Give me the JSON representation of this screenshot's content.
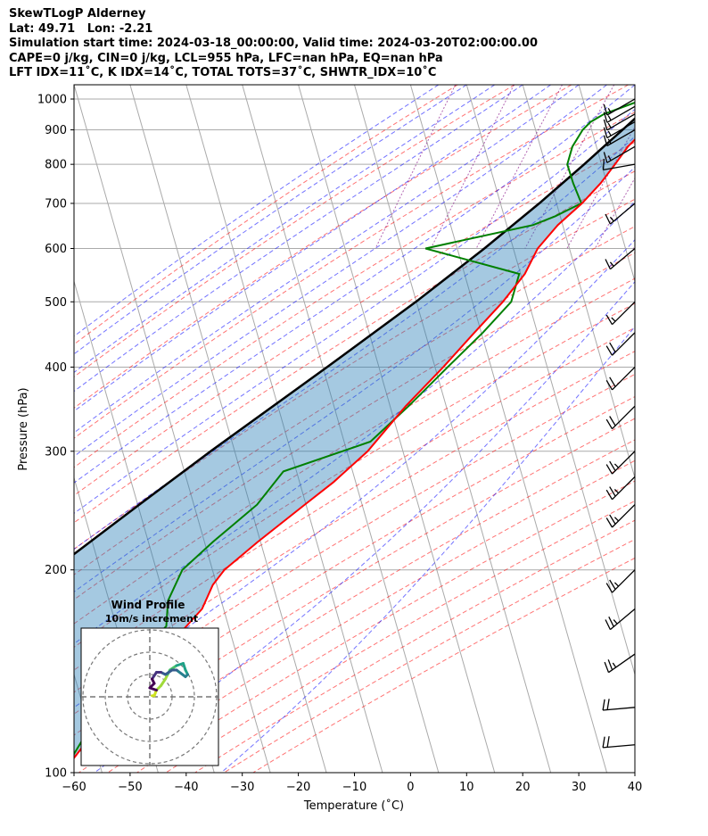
{
  "header": {
    "line1": "SkewTLogP Alderney",
    "line2": "Lat: 49.71   Lon: -2.21",
    "line3": "Simulation start time: 2024-03-18_00:00:00, Valid time: 2024-03-20T02:00:00.00",
    "line4": "CAPE=0 j/kg, CIN=0 j/kg, LCL=955 hPa, LFC=nan hPa, EQ=nan hPa",
    "line5": "LFT IDX=11˚C, K IDX=14˚C, TOTAL TOTS=37˚C, SHWTR_IDX=10˚C"
  },
  "chart_data": {
    "type": "line",
    "subtype": "skew-t log-p",
    "xlabel": "Temperature (˚C)",
    "ylabel": "Pressure (hPa)",
    "xlim": [
      -60,
      40
    ],
    "ylim": [
      1050,
      100
    ],
    "y_scale": "log",
    "skew": 35,
    "x_ticks": [
      "−60",
      "−50",
      "−40",
      "−30",
      "−20",
      "−10",
      "0",
      "10",
      "20",
      "30",
      "40"
    ],
    "y_ticks": [
      "100",
      "200",
      "300",
      "400",
      "500",
      "600",
      "700",
      "800",
      "900",
      "1000"
    ],
    "grid": true,
    "colors": {
      "temperature": "#ff0000",
      "dewpoint": "#008000",
      "parcel": "#000000",
      "cape_fill": "#1f77b4",
      "dry_adiabats": "#ff0000",
      "moist_adiabats": "#0000ff",
      "mixing_ratio": "#800080",
      "isotherms": "#aaaaaa"
    },
    "series": [
      {
        "role": "temperature",
        "p": [
          1000,
          985,
          950,
          925,
          900,
          850,
          800,
          750,
          700,
          650,
          600,
          550,
          500,
          450,
          400,
          350,
          300,
          270,
          250,
          220,
          200,
          190,
          175,
          150,
          130,
          115,
          100
        ],
        "t": [
          11.5,
          12.2,
          11.2,
          10.2,
          9.0,
          6.9,
          5.5,
          3.9,
          1.6,
          -1.6,
          -4.0,
          -5.0,
          -7.5,
          -11.0,
          -14.8,
          -19.5,
          -24.0,
          -28.5,
          -32.5,
          -39.0,
          -43.5,
          -44.8,
          -45.5,
          -50.5,
          -55.0,
          -58.5,
          -62.0
        ]
      },
      {
        "role": "dewpoint",
        "p": [
          1000,
          985,
          950,
          925,
          900,
          850,
          800,
          750,
          700,
          670,
          650,
          600,
          550,
          500,
          450,
          400,
          350,
          310,
          280,
          250,
          220,
          200,
          180,
          165,
          140,
          120,
          100
        ],
        "td": [
          7.5,
          5.5,
          1.0,
          -1.0,
          -2.0,
          -3.0,
          -3.0,
          -1.0,
          1.5,
          -2.5,
          -6.0,
          -24.0,
          -6.0,
          -6.0,
          -9.5,
          -14.0,
          -19.0,
          -24.0,
          -38.0,
          -41.0,
          -47.0,
          -51.0,
          -52.0,
          -51.0,
          -57.0,
          -59.0,
          -62.0
        ]
      },
      {
        "role": "parcel",
        "p": [
          1000,
          985,
          955,
          900,
          850,
          800,
          700,
          600,
          500,
          400,
          300,
          250,
          200,
          150,
          100
        ],
        "t": [
          10.6,
          11.5,
          7.6,
          5.1,
          2.6,
          0.0,
          -6.0,
          -13.5,
          -23.0,
          -35.5,
          -52.0,
          -62.0,
          -74.0,
          -86.0,
          -101.0
        ]
      }
    ],
    "wind_barbs": [
      {
        "p": 1000,
        "speed_kt": 15,
        "dir_deg": 240
      },
      {
        "p": 975,
        "speed_kt": 15,
        "dir_deg": 240
      },
      {
        "p": 950,
        "speed_kt": 15,
        "dir_deg": 240
      },
      {
        "p": 925,
        "speed_kt": 15,
        "dir_deg": 240
      },
      {
        "p": 900,
        "speed_kt": 15,
        "dir_deg": 240
      },
      {
        "p": 850,
        "speed_kt": 15,
        "dir_deg": 240
      },
      {
        "p": 800,
        "speed_kt": 10,
        "dir_deg": 260
      },
      {
        "p": 700,
        "speed_kt": 15,
        "dir_deg": 230
      },
      {
        "p": 600,
        "speed_kt": 15,
        "dir_deg": 230
      },
      {
        "p": 500,
        "speed_kt": 15,
        "dir_deg": 225
      },
      {
        "p": 450,
        "speed_kt": 20,
        "dir_deg": 225
      },
      {
        "p": 400,
        "speed_kt": 20,
        "dir_deg": 225
      },
      {
        "p": 350,
        "speed_kt": 20,
        "dir_deg": 225
      },
      {
        "p": 300,
        "speed_kt": 25,
        "dir_deg": 225
      },
      {
        "p": 275,
        "speed_kt": 25,
        "dir_deg": 225
      },
      {
        "p": 250,
        "speed_kt": 25,
        "dir_deg": 225
      },
      {
        "p": 200,
        "speed_kt": 25,
        "dir_deg": 225
      },
      {
        "p": 175,
        "speed_kt": 25,
        "dir_deg": 230
      },
      {
        "p": 150,
        "speed_kt": 25,
        "dir_deg": 235
      },
      {
        "p": 125,
        "speed_kt": 20,
        "dir_deg": 265
      },
      {
        "p": 110,
        "speed_kt": 20,
        "dir_deg": 265
      }
    ],
    "hodograph": {
      "title": "Wind Profile",
      "subtitle": "10m/s increment",
      "rings_ms": [
        10,
        20,
        30
      ],
      "points": [
        [
          1,
          0.5
        ],
        [
          2,
          0.5
        ],
        [
          3,
          3
        ],
        [
          5,
          5
        ],
        [
          7,
          8
        ],
        [
          8,
          10
        ],
        [
          9,
          12
        ],
        [
          12,
          14
        ],
        [
          15,
          15
        ],
        [
          16,
          12
        ],
        [
          17,
          10
        ],
        [
          16,
          9
        ],
        [
          12,
          12
        ],
        [
          10,
          12
        ],
        [
          7,
          10
        ],
        [
          5,
          11
        ],
        [
          3,
          11
        ],
        [
          1,
          8
        ],
        [
          2,
          6
        ],
        [
          0,
          4
        ],
        [
          3,
          3
        ]
      ]
    }
  }
}
